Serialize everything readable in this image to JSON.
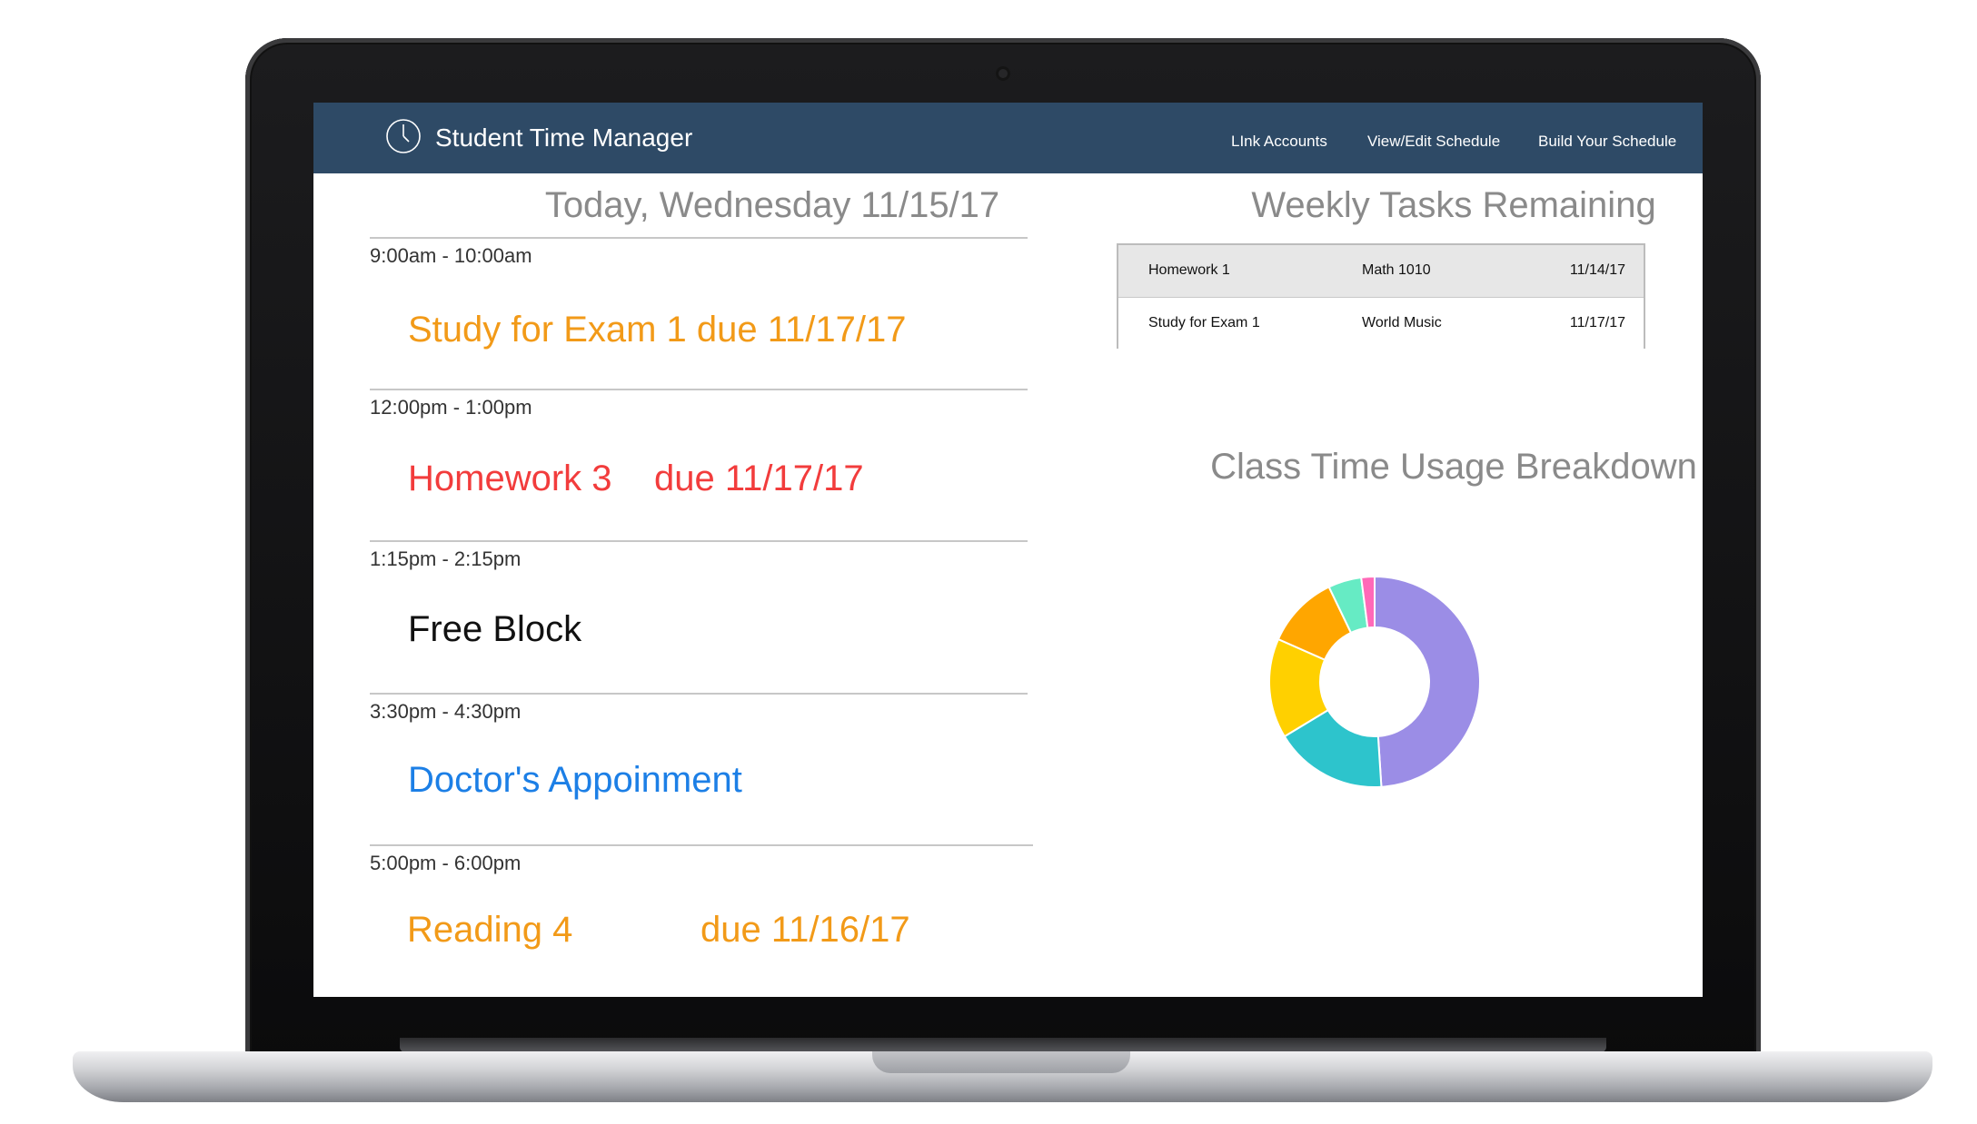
{
  "app": {
    "title": "Student Time Manager",
    "nav": [
      "LInk Accounts",
      "View/Edit Schedule",
      "Build Your Schedule"
    ],
    "header_color": "#2e4a66"
  },
  "schedule": {
    "title": "Today, Wednesday 11/15/17",
    "blocks": [
      {
        "time": "9:00am - 10:00am",
        "task": "Study for Exam 1 due 11/17/17",
        "due": "",
        "color": "#f29a18"
      },
      {
        "time": "12:00pm - 1:00pm",
        "task": "Homework 3",
        "due": "due 11/17/17",
        "color": "#f23c3c"
      },
      {
        "time": "1:15pm - 2:15pm",
        "task": "Free Block",
        "due": "",
        "color": "#111111"
      },
      {
        "time": "3:30pm - 4:30pm",
        "task": "Doctor's Appoinment",
        "due": "",
        "color": "#1c7fe6"
      },
      {
        "time": "5:00pm - 6:00pm",
        "task": "Reading 4",
        "due": "due 11/16/17",
        "color": "#f29a18"
      }
    ]
  },
  "weekly_tasks": {
    "title": "Weekly Tasks Remaining",
    "rows": [
      {
        "name": "Homework 1",
        "class": "Math 1010",
        "date": "11/14/17"
      },
      {
        "name": "Study for Exam 1",
        "class": "World Music",
        "date": "11/17/17"
      }
    ]
  },
  "chart_data": {
    "type": "pie",
    "title": "Class Time Usage Breakdown",
    "values": [
      48,
      17,
      15,
      11,
      5,
      2
    ],
    "colors": [
      "#9b8de6",
      "#2dc4cc",
      "#ffd000",
      "#ffa600",
      "#66ebc4",
      "#ff69b8"
    ]
  }
}
